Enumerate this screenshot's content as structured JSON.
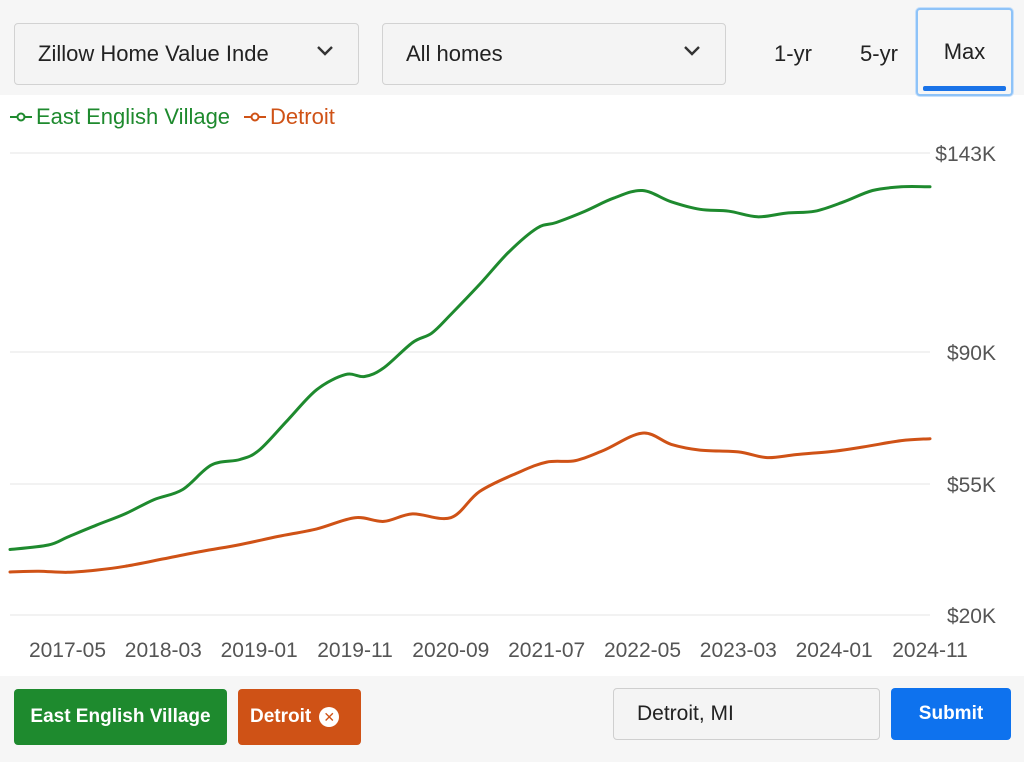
{
  "controls": {
    "metric_dropdown": "Zillow Home Value Inde",
    "home_type_dropdown": "All homes",
    "ranges": [
      "1-yr",
      "5-yr",
      "Max"
    ],
    "active_range": "Max"
  },
  "chips": {
    "primary": "East English Village",
    "secondary": "Detroit"
  },
  "search": {
    "value": "Detroit, MI"
  },
  "submit_label": "Submit",
  "colors": {
    "east_english_village": "#1e8a2e",
    "detroit": "#cf5216",
    "submit": "#0e72ee",
    "active_range_border": "#8ec3f8"
  },
  "chart_data": {
    "type": "line",
    "x_tick_labels": [
      "2017-05",
      "2018-03",
      "2019-01",
      "2019-11",
      "2020-09",
      "2021-07",
      "2022-05",
      "2023-03",
      "2024-01",
      "2024-11"
    ],
    "x_range": [
      "2016-11",
      "2024-11"
    ],
    "y_ticks": [
      20000,
      55000,
      90000,
      143000
    ],
    "y_tick_labels": [
      "$20K",
      "$55K",
      "$90K",
      "$143K"
    ],
    "grid": true,
    "legend_position": "top-left",
    "series": [
      {
        "name": "East English Village",
        "points": [
          [
            "2016-11",
            37500
          ],
          [
            "2017-03",
            38700
          ],
          [
            "2017-05",
            40800
          ],
          [
            "2017-08",
            44000
          ],
          [
            "2017-11",
            47000
          ],
          [
            "2018-02",
            50800
          ],
          [
            "2018-05",
            53500
          ],
          [
            "2018-08",
            60000
          ],
          [
            "2018-11",
            61500
          ],
          [
            "2019-01",
            64000
          ],
          [
            "2019-04",
            72000
          ],
          [
            "2019-07",
            80000
          ],
          [
            "2019-10",
            84000
          ],
          [
            "2019-12",
            83500
          ],
          [
            "2020-02",
            85800
          ],
          [
            "2020-05",
            92500
          ],
          [
            "2020-07",
            95000
          ],
          [
            "2020-09",
            100000
          ],
          [
            "2020-12",
            108000
          ],
          [
            "2021-03",
            116500
          ],
          [
            "2021-06",
            123000
          ],
          [
            "2021-08",
            124500
          ],
          [
            "2021-11",
            127500
          ],
          [
            "2022-02",
            131000
          ],
          [
            "2022-05",
            133000
          ],
          [
            "2022-08",
            130000
          ],
          [
            "2022-11",
            128000
          ],
          [
            "2023-02",
            127500
          ],
          [
            "2023-05",
            126000
          ],
          [
            "2023-08",
            127000
          ],
          [
            "2023-11",
            127500
          ],
          [
            "2024-02",
            130000
          ],
          [
            "2024-05",
            133000
          ],
          [
            "2024-08",
            134000
          ],
          [
            "2024-11",
            134000
          ]
        ]
      },
      {
        "name": "Detroit",
        "points": [
          [
            "2016-11",
            31500
          ],
          [
            "2017-02",
            31700
          ],
          [
            "2017-05",
            31400
          ],
          [
            "2017-08",
            32000
          ],
          [
            "2017-11",
            33000
          ],
          [
            "2018-03",
            35000
          ],
          [
            "2018-07",
            37000
          ],
          [
            "2018-11",
            38800
          ],
          [
            "2019-03",
            41000
          ],
          [
            "2019-07",
            43000
          ],
          [
            "2019-11",
            46000
          ],
          [
            "2020-02",
            45000
          ],
          [
            "2020-05",
            47000
          ],
          [
            "2020-09",
            46000
          ],
          [
            "2020-12",
            53000
          ],
          [
            "2021-04",
            58000
          ],
          [
            "2021-07",
            60800
          ],
          [
            "2021-10",
            61200
          ],
          [
            "2022-01",
            64000
          ],
          [
            "2022-05",
            68500
          ],
          [
            "2022-08",
            65500
          ],
          [
            "2022-11",
            64000
          ],
          [
            "2023-03",
            63500
          ],
          [
            "2023-06",
            62000
          ],
          [
            "2023-09",
            62800
          ],
          [
            "2024-01",
            63700
          ],
          [
            "2024-04",
            64800
          ],
          [
            "2024-08",
            66500
          ],
          [
            "2024-11",
            67000
          ]
        ]
      }
    ]
  }
}
